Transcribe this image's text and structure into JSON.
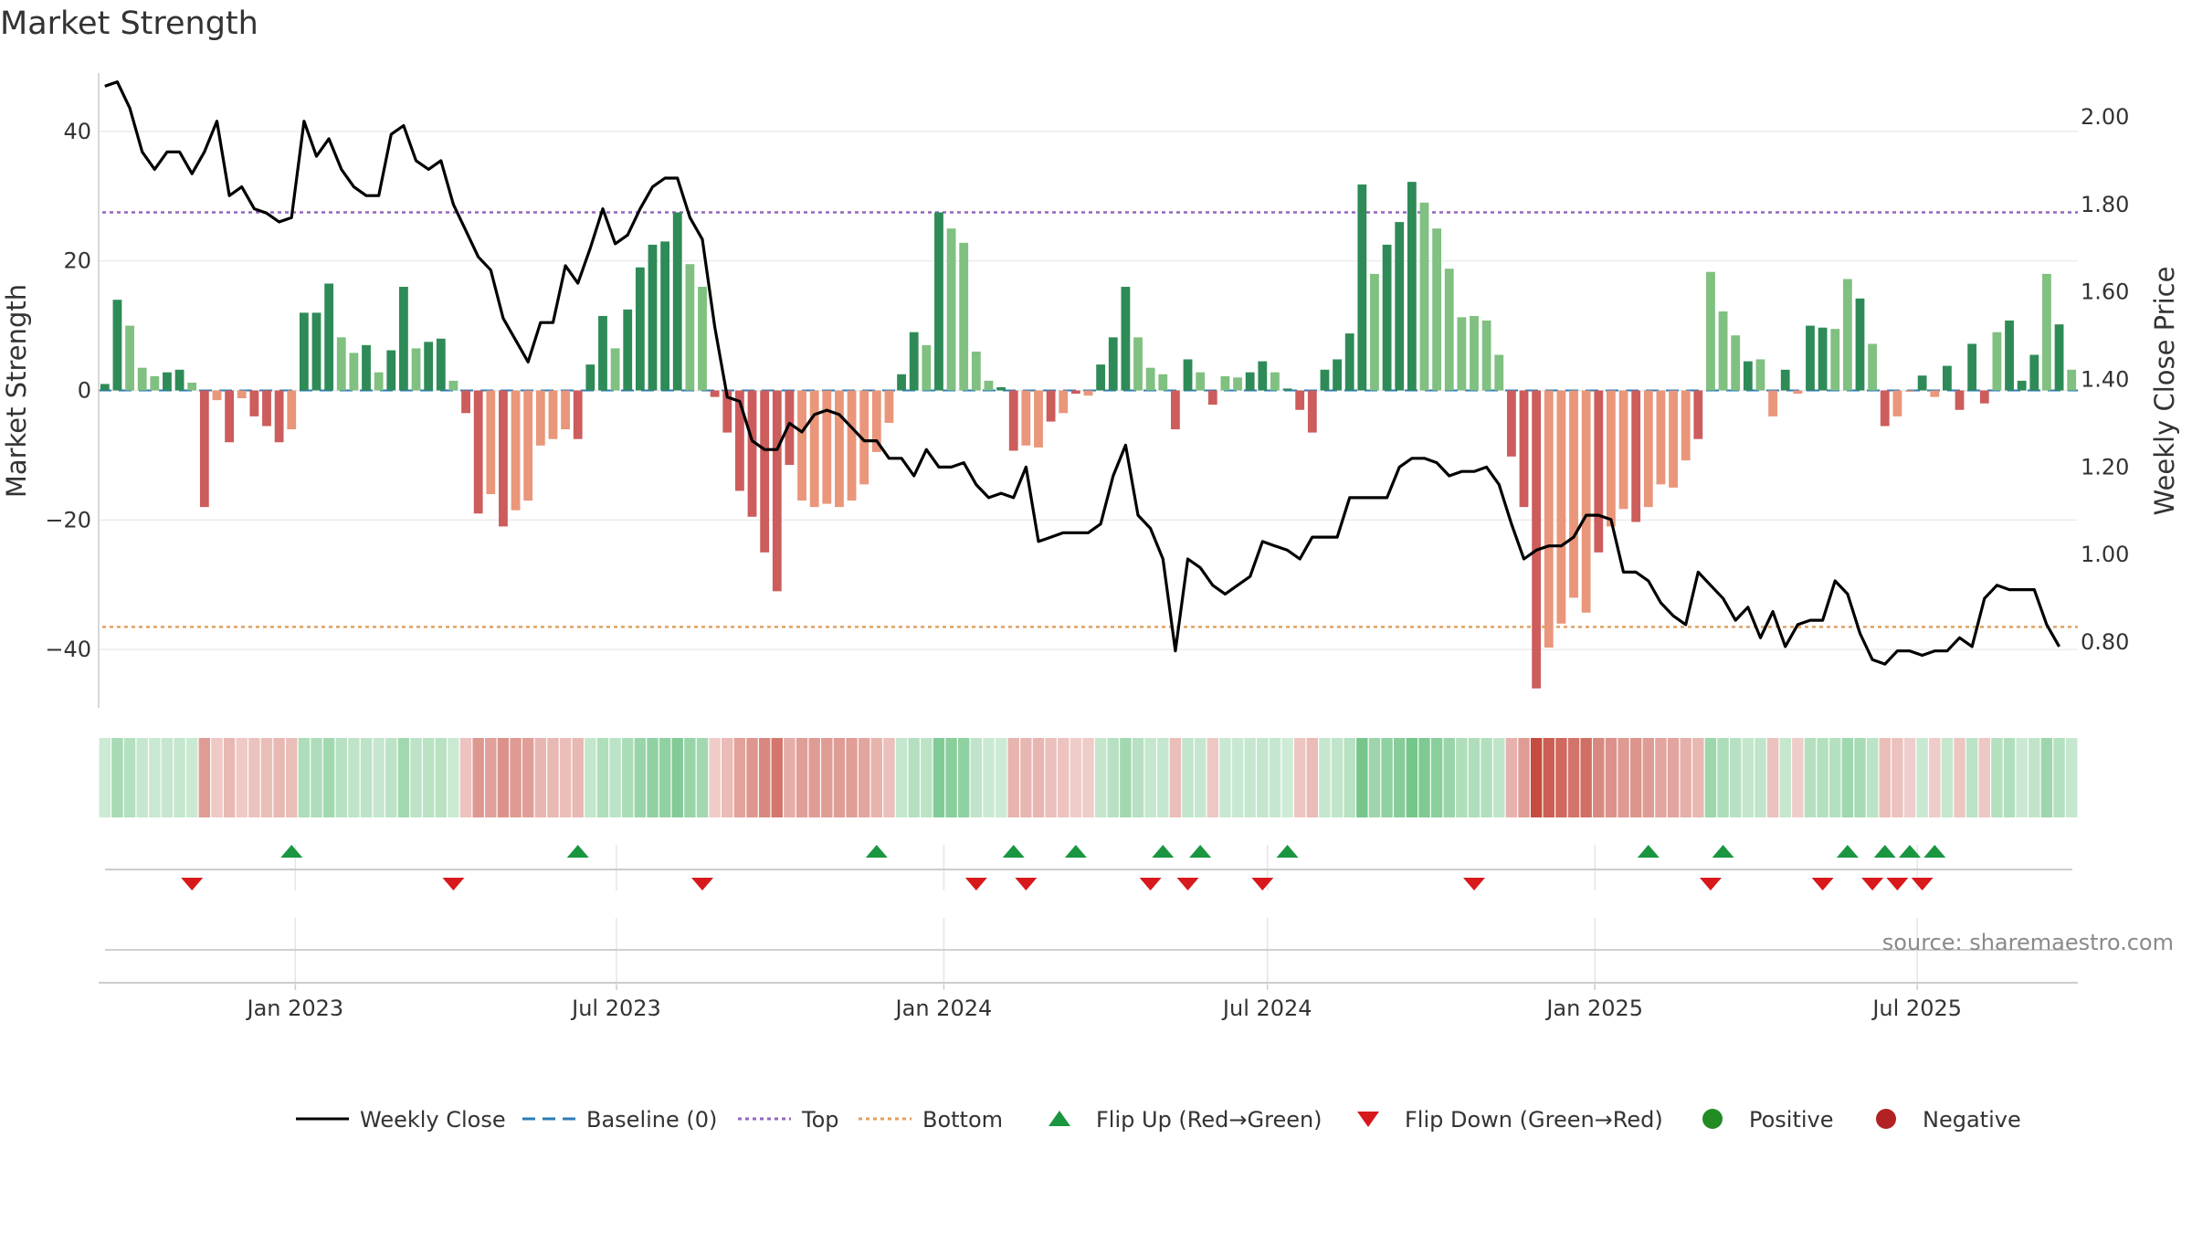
{
  "chart_data": {
    "type": "bar",
    "title": "Market Strength",
    "ylabel": "Market Strength",
    "y2label": "Weekly Close Price",
    "ylim": [
      -49,
      49
    ],
    "y2lim": [
      0.65,
      2.1
    ],
    "yticks": [
      40,
      20,
      0,
      -20,
      -40
    ],
    "ytick_labels": [
      "40",
      "20",
      "0",
      "−20",
      "−40"
    ],
    "y2ticks": [
      2.0,
      1.8,
      1.6,
      1.4,
      1.2,
      1.0,
      0.8
    ],
    "y2tick_labels": [
      "2.00",
      "1.80",
      "1.60",
      "1.40",
      "1.20",
      "1.00",
      "0.80"
    ],
    "xticks": [
      {
        "label": "Jan 2023",
        "week": 15.3
      },
      {
        "label": "Jul 2023",
        "week": 41.1
      },
      {
        "label": "Jan 2024",
        "week": 67.4
      },
      {
        "label": "Jul 2024",
        "week": 93.4
      },
      {
        "label": "Jan 2025",
        "week": 119.7
      },
      {
        "label": "Jul 2025",
        "week": 145.6
      }
    ],
    "top_level": 27.5,
    "bottom_level": -36.5,
    "strength": [
      1,
      14,
      10,
      3.5,
      2.2,
      2.8,
      3.2,
      1.2,
      -18,
      -1.5,
      -8,
      -1.2,
      -4,
      -5.5,
      -8,
      -6,
      12,
      12,
      16.5,
      8.2,
      5.8,
      7,
      2.8,
      6.2,
      16,
      6.5,
      7.5,
      8,
      1.5,
      -3.5,
      -19,
      -16,
      -21,
      -18.5,
      -17,
      -8.5,
      -7.5,
      -6,
      -7.5,
      4,
      11.5,
      6.5,
      12.5,
      19,
      22.5,
      23,
      27.5,
      19.5,
      16,
      -1,
      -6.5,
      -15.5,
      -19.5,
      -25,
      -31,
      -11.5,
      -17,
      -18,
      -17.5,
      -18,
      -17,
      -14.5,
      -9.5,
      -5,
      2.5,
      9,
      7,
      27.5,
      25,
      22.8,
      6,
      1.5,
      0.5,
      -9.3,
      -8.5,
      -8.8,
      -4.8,
      -3.5,
      -0.5,
      -0.8,
      4,
      8.2,
      16,
      8.2,
      3.5,
      2.5,
      -6,
      4.8,
      2.8,
      -2.2,
      2.2,
      2,
      2.8,
      4.5,
      2.8,
      0.3,
      -3,
      -6.5,
      3.2,
      4.8,
      8.8,
      31.8,
      18,
      22.5,
      26,
      32.2,
      29,
      25,
      18.8,
      11.3,
      11.5,
      10.8,
      5.5,
      -10.2,
      -18,
      -46,
      -39.7,
      -36,
      -32,
      -34.3,
      -25,
      -21,
      -18.3,
      -20.3,
      -18,
      -14.5,
      -15,
      -10.8,
      -7.5,
      18.3,
      12.2,
      8.5,
      4.5,
      4.8,
      -4,
      3.2,
      -0.5,
      10,
      9.7,
      9.5,
      17.2,
      14.2,
      7.2,
      -5.5,
      -4,
      -0.2,
      2.3,
      -1,
      3.8,
      -3,
      7.2,
      -2,
      9,
      10.8,
      1.5,
      5.5,
      18,
      10.2,
      3.2
    ],
    "strength_intensity": [
      0,
      0,
      1,
      1,
      1,
      0,
      0,
      1,
      0,
      1,
      0,
      1,
      0,
      0,
      0,
      1,
      0,
      0,
      0,
      1,
      1,
      0,
      1,
      0,
      0,
      1,
      0,
      0,
      1,
      0,
      0,
      1,
      0,
      1,
      1,
      1,
      1,
      1,
      0,
      0,
      0,
      1,
      0,
      0,
      0,
      0,
      0,
      1,
      1,
      0,
      0,
      0,
      0,
      0,
      0,
      0,
      1,
      1,
      1,
      1,
      1,
      1,
      1,
      1,
      0,
      0,
      1,
      0,
      1,
      1,
      1,
      1,
      0,
      0,
      1,
      1,
      0,
      1,
      0,
      1,
      0,
      0,
      0,
      1,
      1,
      1,
      0,
      0,
      1,
      0,
      1,
      1,
      0,
      0,
      1,
      0,
      0,
      0,
      0,
      0,
      0,
      0,
      1,
      0,
      0,
      0,
      1,
      1,
      1,
      1,
      1,
      1,
      1,
      0,
      0,
      0,
      1,
      1,
      1,
      1,
      0,
      1,
      1,
      0,
      1,
      1,
      1,
      1,
      0,
      1,
      1,
      1,
      0,
      1,
      1,
      0,
      1,
      0,
      0,
      1,
      1,
      0,
      1,
      0,
      1,
      1,
      0,
      1,
      0,
      0,
      0,
      0,
      1,
      0,
      0,
      0,
      1,
      0,
      1,
      0,
      1
    ],
    "weekly_close": [
      2.07,
      2.08,
      2.02,
      1.92,
      1.88,
      1.92,
      1.92,
      1.87,
      1.92,
      1.99,
      1.82,
      1.84,
      1.79,
      1.78,
      1.76,
      1.77,
      1.99,
      1.91,
      1.95,
      1.88,
      1.84,
      1.82,
      1.82,
      1.96,
      1.98,
      1.9,
      1.88,
      1.9,
      1.8,
      1.74,
      1.68,
      1.65,
      1.54,
      1.49,
      1.44,
      1.53,
      1.53,
      1.66,
      1.62,
      1.7,
      1.79,
      1.71,
      1.73,
      1.79,
      1.84,
      1.86,
      1.86,
      1.77,
      1.72,
      1.52,
      1.36,
      1.35,
      1.26,
      1.24,
      1.24,
      1.3,
      1.28,
      1.32,
      1.33,
      1.32,
      1.29,
      1.26,
      1.26,
      1.22,
      1.22,
      1.18,
      1.24,
      1.2,
      1.2,
      1.21,
      1.16,
      1.13,
      1.14,
      1.13,
      1.2,
      1.03,
      1.04,
      1.05,
      1.05,
      1.05,
      1.07,
      1.18,
      1.25,
      1.09,
      1.06,
      0.99,
      0.78,
      0.99,
      0.97,
      0.93,
      0.91,
      0.93,
      0.95,
      1.03,
      1.02,
      1.01,
      0.99,
      1.04,
      1.04,
      1.04,
      1.13,
      1.13,
      1.13,
      1.13,
      1.2,
      1.22,
      1.22,
      1.21,
      1.18,
      1.19,
      1.19,
      1.2,
      1.16,
      1.07,
      0.99,
      1.01,
      1.02,
      1.02,
      1.04,
      1.09,
      1.09,
      1.08,
      0.96,
      0.96,
      0.94,
      0.89,
      0.86,
      0.84,
      0.96,
      0.93,
      0.9,
      0.85,
      0.88,
      0.81,
      0.87,
      0.79,
      0.84,
      0.85,
      0.85,
      0.94,
      0.91,
      0.82,
      0.76,
      0.75,
      0.78,
      0.78,
      0.77,
      0.78,
      0.78,
      0.81,
      0.79,
      0.9,
      0.93,
      0.92,
      0.92,
      0.92,
      0.84,
      0.79
    ],
    "flip_up_weeks": [
      15,
      38,
      62,
      73,
      78,
      85,
      88,
      95,
      124,
      130,
      140,
      143,
      145,
      147
    ],
    "flip_down_weeks": [
      7,
      28,
      48,
      70,
      74,
      84,
      87,
      93,
      110,
      129,
      138,
      142,
      144,
      146
    ],
    "legend": [
      {
        "kind": "line",
        "label": "Weekly Close",
        "color": "#000000",
        "dash": ""
      },
      {
        "kind": "line",
        "label": "Baseline (0)",
        "color": "#2c7bb6",
        "dash": "14 8"
      },
      {
        "kind": "line",
        "label": "Top",
        "color": "#9467bd",
        "dash": "4 4"
      },
      {
        "kind": "line",
        "label": "Bottom",
        "color": "#e0a060",
        "dash": "4 4"
      },
      {
        "kind": "up",
        "label": "Flip Up (Red→Green)",
        "color": "#1a9641"
      },
      {
        "kind": "down",
        "label": "Flip Down (Green→Red)",
        "color": "#d7191c"
      },
      {
        "kind": "dot",
        "label": "Positive",
        "color": "#228b22"
      },
      {
        "kind": "dot",
        "label": "Negative",
        "color": "#b22222"
      }
    ],
    "source": "source: sharemaestro.com"
  },
  "colors": {
    "pos_strong": "#2e8b57",
    "pos_light": "#80c080",
    "neg_strong": "#cd5c5c",
    "neg_light": "#e9967a",
    "top_line": "#9467bd",
    "bottom_line": "#e0a060",
    "baseline": "#2c7bb6",
    "close_line": "#000000",
    "flip_up": "#1a9641",
    "flip_down": "#d7191c"
  }
}
